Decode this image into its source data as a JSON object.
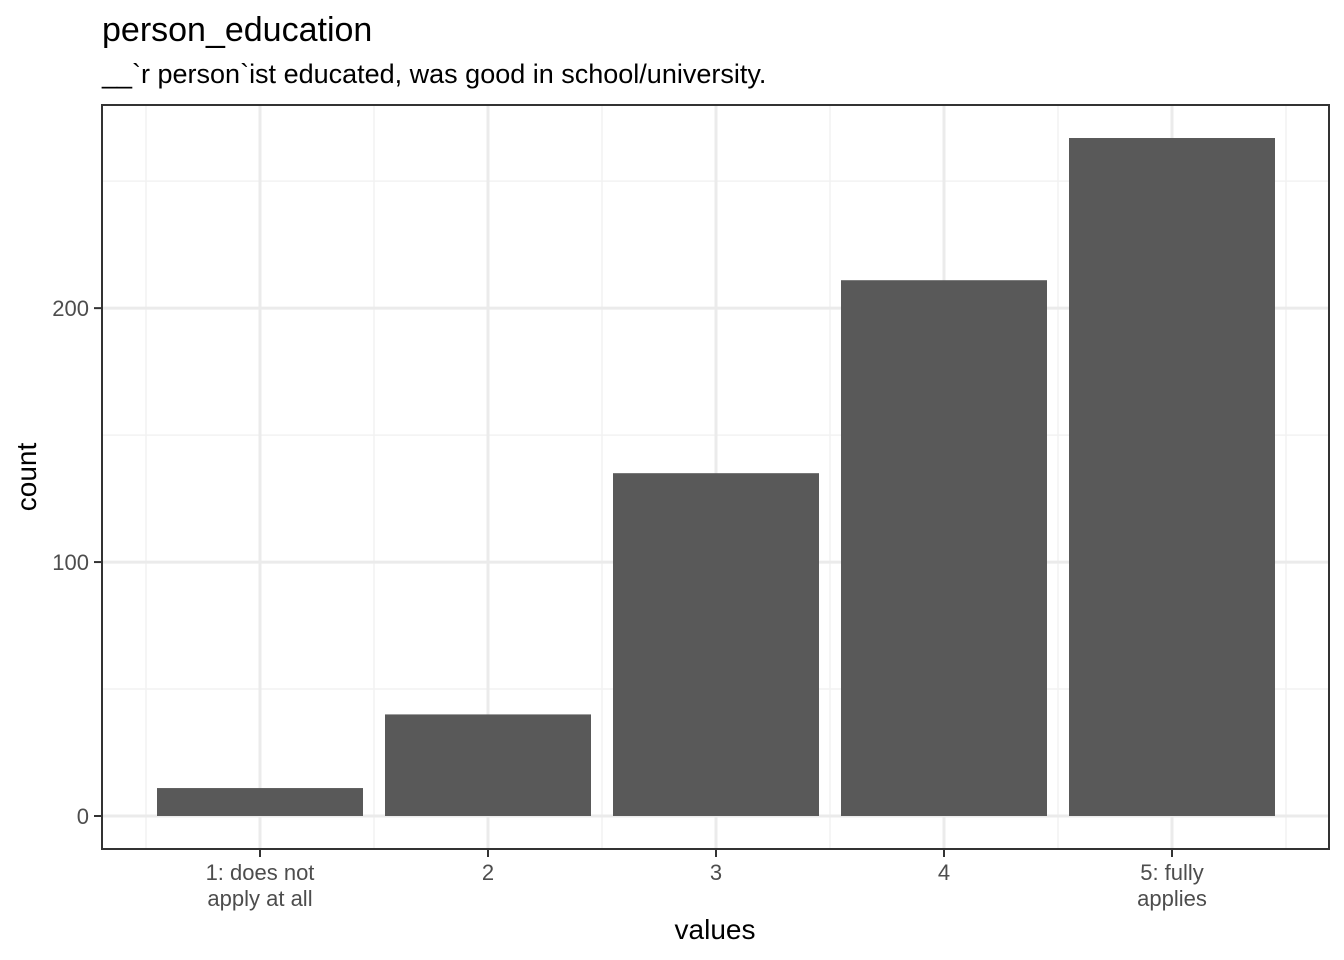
{
  "chart_data": {
    "type": "bar",
    "title": "person_education",
    "subtitle": "__`r person`ist educated, was good in school/university.",
    "xlabel": "values",
    "ylabel": "count",
    "categories": [
      [
        "1: does not",
        "apply at all"
      ],
      [
        "2"
      ],
      [
        "3"
      ],
      [
        "4"
      ],
      [
        "5: fully",
        "applies"
      ]
    ],
    "values": [
      11,
      40,
      135,
      211,
      267
    ],
    "ylim": [
      -13,
      280
    ],
    "yticks": [
      0,
      100,
      200
    ],
    "grid": true,
    "colors": {
      "bar": "#595959",
      "panel_border": "#333333",
      "grid_major": "#ebebeb",
      "grid_minor": "#f2f2f2",
      "tick": "#333333",
      "background": "#ffffff"
    }
  }
}
